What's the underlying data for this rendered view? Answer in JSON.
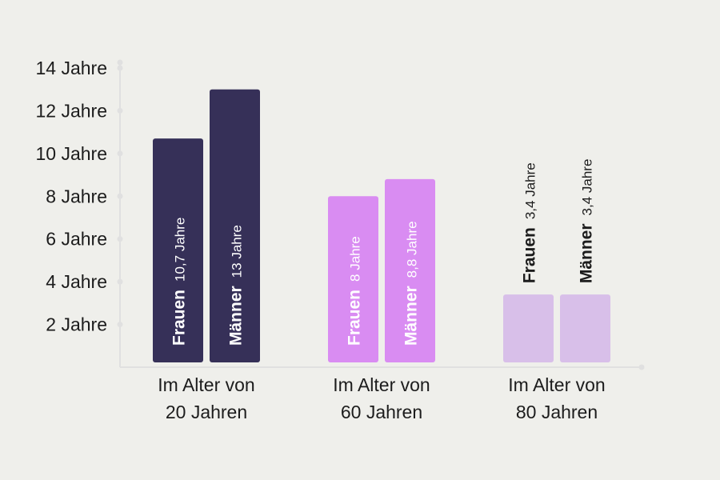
{
  "chart_data": {
    "type": "bar",
    "title": "",
    "xlabel": "",
    "ylabel": "",
    "ylim": [
      0,
      14
    ],
    "y_ticks": [
      {
        "value": 2,
        "label": "2 Jahre"
      },
      {
        "value": 4,
        "label": "4 Jahre"
      },
      {
        "value": 6,
        "label": "6 Jahre"
      },
      {
        "value": 8,
        "label": "8 Jahre"
      },
      {
        "value": 10,
        "label": "10 Jahre"
      },
      {
        "value": 12,
        "label": "12 Jahre"
      },
      {
        "value": 14,
        "label": "14 Jahre"
      }
    ],
    "categories": [
      {
        "line1": "Im Alter von",
        "line2": "20 Jahren",
        "color": "#363058",
        "label_position": "inside",
        "text_color": "#ffffff"
      },
      {
        "line1": "Im Alter von",
        "line2": "60 Jahren",
        "color": "#d98cf2",
        "label_position": "inside",
        "text_color": "#ffffff"
      },
      {
        "line1": "Im Alter von",
        "line2": "80 Jahren",
        "color": "#d8bfe9",
        "label_position": "above",
        "text_color": "#1c1c1c"
      }
    ],
    "series": [
      {
        "name": "Frauen",
        "values": [
          10.7,
          8,
          3.4
        ],
        "value_labels": [
          "10,7 Jahre",
          "8 Jahre",
          "3,4 Jahre"
        ]
      },
      {
        "name": "Männer",
        "values": [
          13,
          8.8,
          3.4
        ],
        "value_labels": [
          "13 Jahre",
          "8,8 Jahre",
          "3,4 Jahre"
        ]
      }
    ],
    "grid": false,
    "axis_color": "#e0e0e0"
  }
}
